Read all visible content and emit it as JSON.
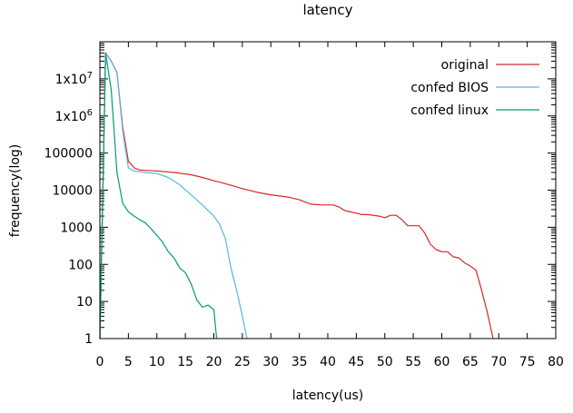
{
  "chart_data": {
    "type": "line",
    "title": "latency",
    "xlabel": "latency(us)",
    "ylabel": "frequency(log)",
    "xlim": [
      0,
      80
    ],
    "ylim": [
      1,
      100000000
    ],
    "yscale": "log",
    "xticks": [
      0,
      5,
      10,
      15,
      20,
      25,
      30,
      35,
      40,
      45,
      50,
      55,
      60,
      65,
      70,
      75,
      80
    ],
    "xtick_labels": [
      "0",
      "5",
      "10",
      "15",
      "20",
      "25",
      "30",
      "35",
      "40",
      "45",
      "50",
      "55",
      "60",
      "65",
      "70",
      "75",
      "80"
    ],
    "yticks": [
      1,
      10,
      100,
      1000,
      10000,
      100000,
      1000000,
      10000000
    ],
    "ytick_labels": [
      {
        "base": "1",
        "exp": ""
      },
      {
        "base": "10",
        "exp": ""
      },
      {
        "base": "100",
        "exp": ""
      },
      {
        "base": "1000",
        "exp": ""
      },
      {
        "base": "10000",
        "exp": ""
      },
      {
        "base": "100000",
        "exp": ""
      },
      {
        "base": "1x10",
        "exp": "6"
      },
      {
        "base": "1x10",
        "exp": "7"
      }
    ],
    "legend_position": "top-right",
    "series": [
      {
        "name": "original",
        "color": "#d62728",
        "points": [
          [
            0,
            1
          ],
          [
            1,
            50000000
          ],
          [
            2,
            30000000
          ],
          [
            3,
            15000000
          ],
          [
            4,
            500000
          ],
          [
            5,
            60000
          ],
          [
            6,
            40000
          ],
          [
            7,
            35000
          ],
          [
            10,
            33000
          ],
          [
            13,
            30000
          ],
          [
            16,
            26000
          ],
          [
            18,
            22000
          ],
          [
            20,
            18000
          ],
          [
            22,
            15000
          ],
          [
            25,
            11000
          ],
          [
            28,
            8500
          ],
          [
            30,
            7500
          ],
          [
            33,
            6500
          ],
          [
            35,
            5500
          ],
          [
            37,
            4200
          ],
          [
            39,
            4000
          ],
          [
            41,
            4000
          ],
          [
            42,
            3500
          ],
          [
            43,
            2800
          ],
          [
            45,
            2400
          ],
          [
            46,
            2200
          ],
          [
            47,
            2200
          ],
          [
            49,
            2000
          ],
          [
            50,
            1800
          ],
          [
            51,
            2100
          ],
          [
            52,
            2100
          ],
          [
            53,
            1600
          ],
          [
            54,
            1100
          ],
          [
            56,
            1100
          ],
          [
            57,
            700
          ],
          [
            58,
            350
          ],
          [
            59,
            250
          ],
          [
            60,
            220
          ],
          [
            61,
            220
          ],
          [
            62,
            160
          ],
          [
            63,
            150
          ],
          [
            64,
            110
          ],
          [
            65,
            90
          ],
          [
            66,
            70
          ],
          [
            67,
            20
          ],
          [
            68,
            5
          ],
          [
            69,
            1
          ]
        ]
      },
      {
        "name": "confed BIOS",
        "color": "#56b4e9",
        "points": [
          [
            0,
            1
          ],
          [
            1,
            50000000
          ],
          [
            2,
            30000000
          ],
          [
            3,
            15000000
          ],
          [
            4,
            400000
          ],
          [
            5,
            40000
          ],
          [
            6,
            33000
          ],
          [
            8,
            30000
          ],
          [
            10,
            28000
          ],
          [
            12,
            22000
          ],
          [
            14,
            14000
          ],
          [
            16,
            7500
          ],
          [
            18,
            4000
          ],
          [
            20,
            2000
          ],
          [
            21,
            1200
          ],
          [
            22,
            500
          ],
          [
            23,
            80
          ],
          [
            24,
            20
          ],
          [
            25,
            4
          ],
          [
            25.8,
            1
          ]
        ]
      },
      {
        "name": "confed linux",
        "color": "#009e73",
        "points": [
          [
            0,
            1
          ],
          [
            1,
            50000000
          ],
          [
            2,
            5000000
          ],
          [
            3,
            30000
          ],
          [
            4,
            4500
          ],
          [
            5,
            2600
          ],
          [
            6,
            2000
          ],
          [
            7,
            1600
          ],
          [
            8,
            1300
          ],
          [
            9,
            900
          ],
          [
            10,
            600
          ],
          [
            11,
            400
          ],
          [
            12,
            220
          ],
          [
            13,
            150
          ],
          [
            14,
            80
          ],
          [
            15,
            60
          ],
          [
            16,
            30
          ],
          [
            17,
            11
          ],
          [
            18,
            7
          ],
          [
            19,
            8
          ],
          [
            20,
            6
          ],
          [
            20.5,
            1
          ]
        ]
      }
    ]
  }
}
